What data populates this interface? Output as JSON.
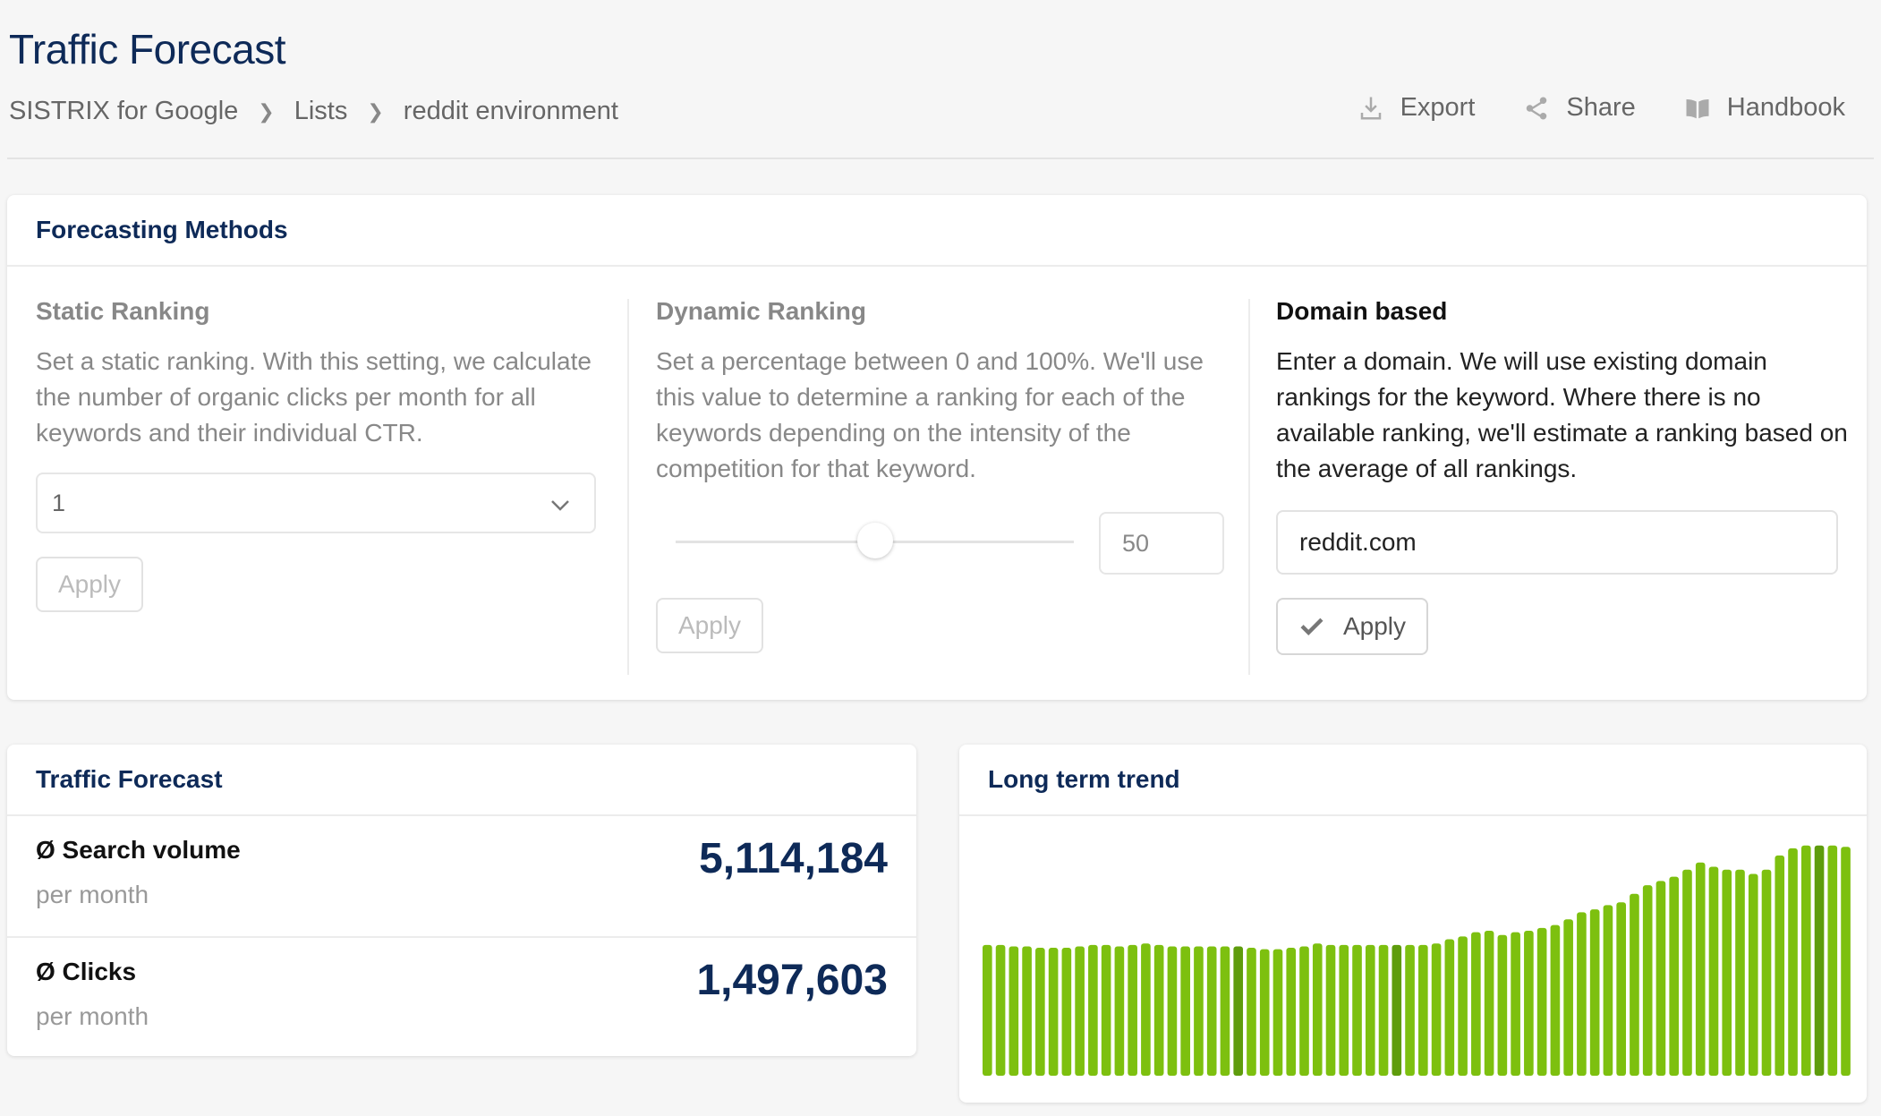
{
  "header": {
    "title": "Traffic Forecast",
    "breadcrumb": [
      "SISTRIX for Google",
      "Lists",
      "reddit environment"
    ],
    "actions": {
      "export": "Export",
      "share": "Share",
      "handbook": "Handbook"
    }
  },
  "methods": {
    "title": "Forecasting Methods",
    "static": {
      "title": "Static Ranking",
      "desc": "Set a static ranking. With this setting, we calculate the number of organic clicks per month for all keywords and their individual CTR.",
      "selected": "1",
      "apply": "Apply"
    },
    "dynamic": {
      "title": "Dynamic Ranking",
      "desc": "Set a percentage between 0 and 100%. We'll use this value to determine a ranking for each of the keywords depending on the intensity of the competition for that keyword.",
      "value": "50",
      "slider_fraction": 0.5,
      "apply": "Apply"
    },
    "domain": {
      "title": "Domain based",
      "desc": "Enter a domain. We will use existing domain rankings for the keyword. Where there is no available ranking, we'll estimate a ranking based on the average of all rankings.",
      "value": "reddit.com",
      "apply": "Apply"
    }
  },
  "forecast": {
    "title": "Traffic Forecast",
    "search_volume": {
      "label": "Ø Search volume",
      "sub": "per month",
      "value": "5,114,184"
    },
    "clicks": {
      "label": "Ø Clicks",
      "sub": "per month",
      "value": "1,497,603"
    }
  },
  "trend": {
    "title": "Long term trend"
  },
  "colors": {
    "bar": "#7dc00f",
    "bar_dark": "#5e9c0c",
    "navy": "#0e2a58"
  },
  "chart_data": {
    "type": "bar",
    "values": [
      92,
      92,
      91,
      91,
      90,
      90,
      90,
      91,
      92,
      92,
      91,
      92,
      93,
      92,
      91,
      91,
      91,
      91,
      91,
      91,
      90,
      89,
      89,
      90,
      91,
      93,
      92,
      92,
      92,
      92,
      92,
      92,
      92,
      92,
      93,
      96,
      98,
      101,
      102,
      99,
      101,
      102,
      104,
      106,
      110,
      115,
      117,
      120,
      122,
      128,
      134,
      137,
      140,
      145,
      150,
      147,
      145,
      145,
      142,
      145,
      155,
      160,
      162,
      162,
      162,
      161
    ],
    "highlight_indices": [
      19,
      31,
      63
    ],
    "ylim": [
      0,
      170
    ]
  }
}
